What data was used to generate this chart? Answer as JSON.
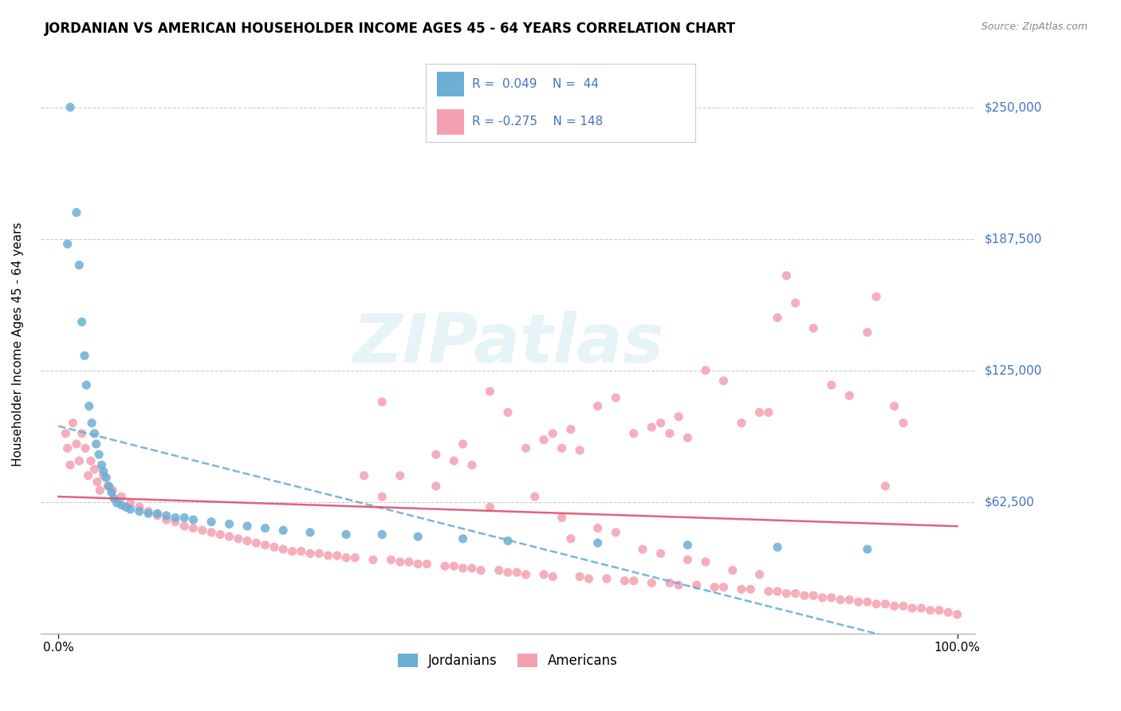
{
  "title": "JORDANIAN VS AMERICAN HOUSEHOLDER INCOME AGES 45 - 64 YEARS CORRELATION CHART",
  "source": "Source: ZipAtlas.com",
  "ylabel": "Householder Income Ages 45 - 64 years",
  "ytick_labels": [
    "$62,500",
    "$125,000",
    "$187,500",
    "$250,000"
  ],
  "ytick_values": [
    62500,
    125000,
    187500,
    250000
  ],
  "ymin": 0,
  "ymax": 275000,
  "xmin": -2,
  "xmax": 102,
  "legend_r_jordan": "0.049",
  "legend_n_jordan": "44",
  "legend_r_american": "-0.275",
  "legend_n_american": "148",
  "jordan_color": "#6baed6",
  "american_color": "#f4a0b0",
  "jordan_trend_color": "#6baed6",
  "american_trend_color": "#e05070",
  "watermark": "ZIPatlas",
  "jordan_x": [
    1.0,
    1.3,
    2.0,
    2.3,
    2.6,
    2.9,
    3.1,
    3.4,
    3.7,
    4.0,
    4.2,
    4.5,
    4.8,
    5.0,
    5.3,
    5.6,
    5.9,
    6.2,
    6.5,
    7.0,
    7.5,
    8.0,
    9.0,
    10.0,
    11.0,
    12.0,
    13.0,
    14.0,
    15.0,
    17.0,
    19.0,
    21.0,
    23.0,
    25.0,
    28.0,
    32.0,
    36.0,
    40.0,
    45.0,
    50.0,
    60.0,
    70.0,
    80.0,
    90.0
  ],
  "jordan_y": [
    185000,
    250000,
    200000,
    175000,
    148000,
    132000,
    118000,
    108000,
    100000,
    95000,
    90000,
    85000,
    80000,
    77000,
    74000,
    70000,
    67000,
    64000,
    62000,
    61000,
    60000,
    59000,
    58000,
    57000,
    57000,
    56000,
    55000,
    55000,
    54000,
    53000,
    52000,
    51000,
    50000,
    49000,
    48000,
    47000,
    47000,
    46000,
    45000,
    44000,
    43000,
    42000,
    41000,
    40000
  ],
  "american_x": [
    0.8,
    1.0,
    1.3,
    1.6,
    2.0,
    2.3,
    2.6,
    3.0,
    3.3,
    3.6,
    4.0,
    4.3,
    4.6,
    5.0,
    5.5,
    6.0,
    7.0,
    8.0,
    9.0,
    10.0,
    11.0,
    12.0,
    13.0,
    14.0,
    15.0,
    16.0,
    17.0,
    18.0,
    19.0,
    20.0,
    21.0,
    22.0,
    23.0,
    24.0,
    25.0,
    26.0,
    27.0,
    28.0,
    29.0,
    30.0,
    31.0,
    32.0,
    33.0,
    34.0,
    35.0,
    36.0,
    37.0,
    38.0,
    39.0,
    40.0,
    41.0,
    42.0,
    43.0,
    44.0,
    45.0,
    46.0,
    47.0,
    48.0,
    49.0,
    50.0,
    51.0,
    52.0,
    53.0,
    54.0,
    55.0,
    56.0,
    57.0,
    58.0,
    59.0,
    60.0,
    61.0,
    62.0,
    63.0,
    64.0,
    65.0,
    66.0,
    67.0,
    68.0,
    69.0,
    70.0,
    71.0,
    72.0,
    73.0,
    74.0,
    75.0,
    76.0,
    77.0,
    78.0,
    79.0,
    80.0,
    81.0,
    82.0,
    83.0,
    84.0,
    85.0,
    86.0,
    87.0,
    88.0,
    89.0,
    90.0,
    91.0,
    92.0,
    93.0,
    94.0,
    95.0,
    96.0,
    97.0,
    98.0,
    99.0,
    100.0,
    36.0,
    48.0,
    60.0,
    72.0,
    84.0,
    50.0,
    62.0,
    74.0,
    86.0,
    55.0,
    67.0,
    79.0,
    91.0,
    45.0,
    57.0,
    69.0,
    81.0,
    93.0,
    52.0,
    64.0,
    76.0,
    88.0,
    42.0,
    54.0,
    66.0,
    78.0,
    90.0,
    46.0,
    58.0,
    70.0,
    82.0,
    94.0,
    38.0,
    44.0,
    56.0,
    68.0,
    80.0,
    92.0
  ],
  "american_y": [
    95000,
    88000,
    80000,
    100000,
    90000,
    82000,
    95000,
    88000,
    75000,
    82000,
    78000,
    72000,
    68000,
    75000,
    70000,
    68000,
    65000,
    62000,
    60000,
    58000,
    56000,
    54000,
    53000,
    51000,
    50000,
    49000,
    48000,
    47000,
    46000,
    45000,
    44000,
    43000,
    42000,
    41000,
    40000,
    39000,
    39000,
    38000,
    38000,
    37000,
    37000,
    36000,
    36000,
    75000,
    35000,
    65000,
    35000,
    34000,
    34000,
    33000,
    33000,
    70000,
    32000,
    32000,
    31000,
    31000,
    30000,
    60000,
    30000,
    29000,
    29000,
    28000,
    65000,
    28000,
    27000,
    55000,
    45000,
    27000,
    26000,
    50000,
    26000,
    48000,
    25000,
    25000,
    40000,
    24000,
    38000,
    24000,
    23000,
    35000,
    23000,
    34000,
    22000,
    22000,
    30000,
    21000,
    21000,
    28000,
    20000,
    20000,
    19000,
    19000,
    18000,
    18000,
    17000,
    17000,
    16000,
    16000,
    15000,
    15000,
    14000,
    14000,
    13000,
    13000,
    12000,
    12000,
    11000,
    11000,
    10000,
    9000,
    110000,
    115000,
    108000,
    125000,
    145000,
    105000,
    112000,
    120000,
    118000,
    95000,
    100000,
    105000,
    160000,
    90000,
    97000,
    103000,
    170000,
    108000,
    88000,
    95000,
    100000,
    113000,
    85000,
    92000,
    98000,
    105000,
    143000,
    80000,
    87000,
    93000,
    157000,
    100000,
    75000,
    82000,
    88000,
    95000,
    150000,
    70000
  ]
}
